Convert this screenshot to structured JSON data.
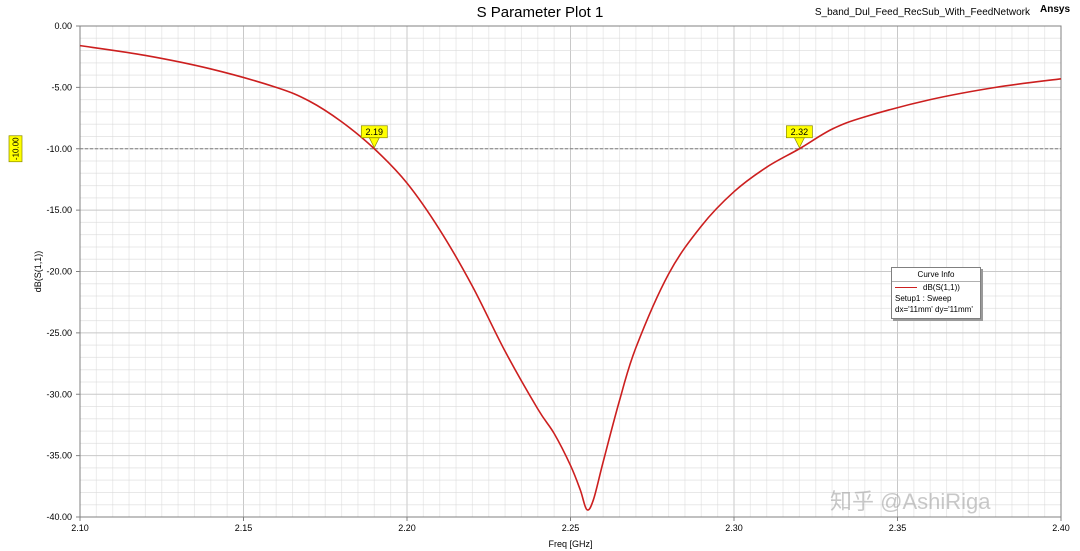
{
  "title": "S Parameter Plot 1",
  "project": "S_band_Dul_Feed_RecSub_With_FeedNetwork",
  "vendor": "Ansys",
  "legend": {
    "header": "Curve Info",
    "series": "dB(S(1,1))",
    "line2": "Setup1 : Sweep",
    "line3": "dx='11mm' dy='11mm'"
  },
  "watermark": "知乎 @AshiRiga",
  "colors": {
    "curve": "#cc1f1f",
    "marker": "#ffff00",
    "grid": "#d9d9d9"
  },
  "chart_data": {
    "type": "line",
    "title": "S Parameter Plot 1",
    "xlabel": "Freq [GHz]",
    "ylabel": "dB(S(1,1))",
    "xlim": [
      2.1,
      2.4
    ],
    "ylim": [
      -40.0,
      0.0
    ],
    "xticks": [
      "2.10",
      "2.15",
      "2.20",
      "2.25",
      "2.30",
      "2.35",
      "2.40"
    ],
    "yticks": [
      "0.00",
      "-5.00",
      "-10.00",
      "-15.00",
      "-20.00",
      "-25.00",
      "-30.00",
      "-35.00",
      "-40.00"
    ],
    "grid": true,
    "legend_position": "right",
    "series": [
      {
        "name": "dB(S(1,1))",
        "x": [
          2.1,
          2.12,
          2.14,
          2.16,
          2.17,
          2.18,
          2.19,
          2.2,
          2.21,
          2.22,
          2.23,
          2.24,
          2.245,
          2.25,
          2.253,
          2.255,
          2.257,
          2.26,
          2.265,
          2.27,
          2.28,
          2.29,
          2.3,
          2.31,
          2.32,
          2.33,
          2.34,
          2.36,
          2.38,
          2.4
        ],
        "y": [
          -1.6,
          -2.4,
          -3.5,
          -5.0,
          -6.1,
          -7.8,
          -10.0,
          -12.8,
          -16.6,
          -21.2,
          -26.5,
          -31.2,
          -33.2,
          -35.8,
          -37.8,
          -39.4,
          -38.6,
          -35.5,
          -30.5,
          -26.2,
          -20.2,
          -16.3,
          -13.5,
          -11.5,
          -10.0,
          -8.4,
          -7.4,
          -6.0,
          -5.0,
          -4.3
        ]
      }
    ],
    "reference_line": {
      "y": -10.0,
      "label": "-10.00"
    },
    "markers": [
      {
        "x": 2.19,
        "y": -10.0,
        "label": "2.19"
      },
      {
        "x": 2.32,
        "y": -10.0,
        "label": "2.32"
      }
    ]
  }
}
